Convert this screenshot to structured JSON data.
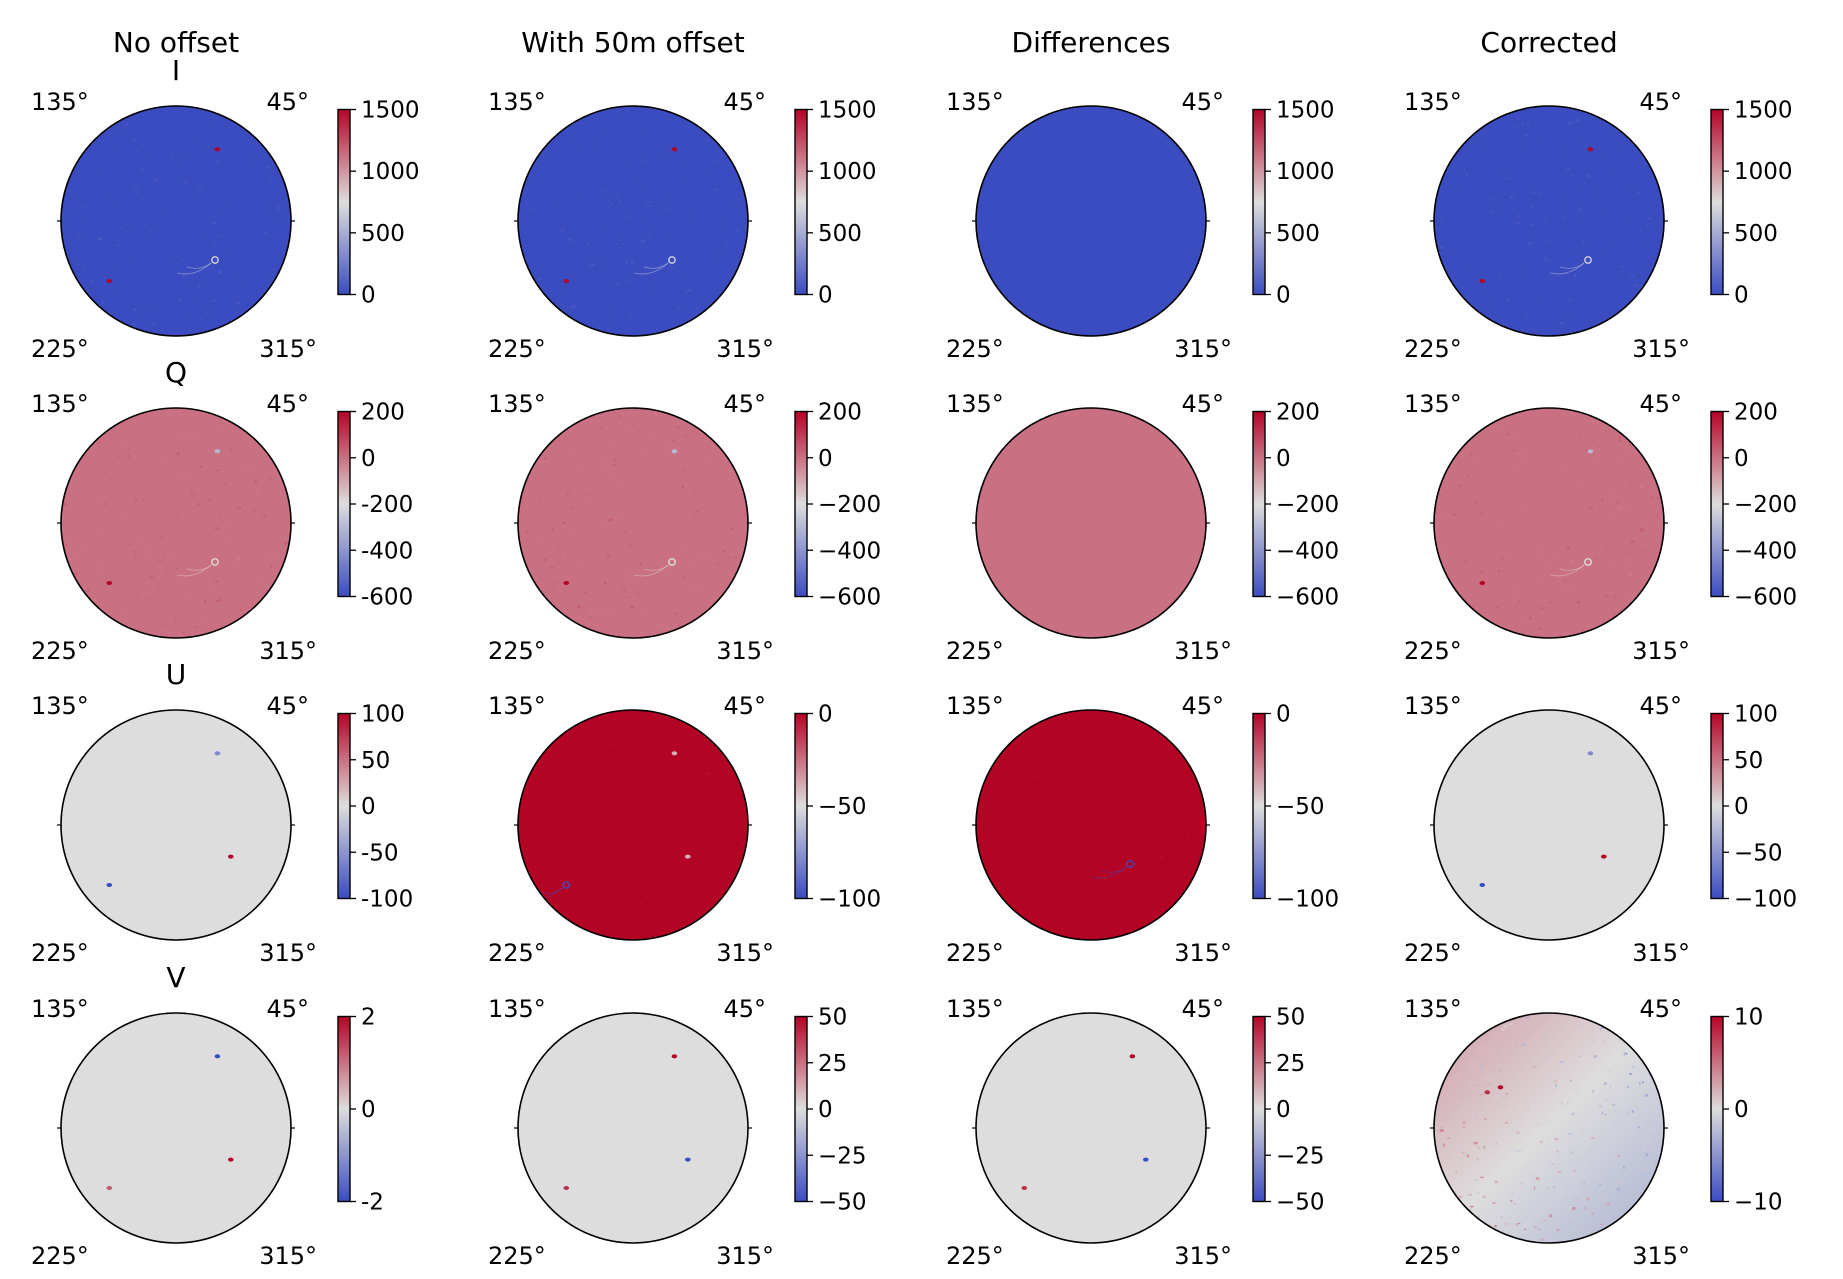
{
  "column_titles": [
    "No offset",
    "With 50m offset",
    "Differences",
    "Corrected"
  ],
  "row_labels": [
    "I",
    "Q",
    "U",
    "V"
  ],
  "corner_labels": {
    "top_left": "135°",
    "top_right": "45°",
    "bottom_left": "225°",
    "bottom_right": "315°"
  },
  "colors": {
    "cmap": "coolwarm",
    "cmap_low": "#3b4cc0",
    "cmap_mid": "#dddddd",
    "cmap_high": "#b40426",
    "outline": "#000000",
    "background": "#ffffff"
  },
  "chart_data": {
    "type": "heatmap",
    "layout": "4 rows x 4 columns of circular all-sky maps, each with its own colorbar",
    "panels": [
      {
        "row": "I",
        "column": "No offset",
        "background": 0,
        "clim": [
          0,
          1500
        ],
        "ticks": [
          0,
          500,
          1000,
          1500
        ],
        "tick_labels": [
          "0",
          "500",
          "1000",
          "1500"
        ],
        "texture": "speckle",
        "sources": [
          {
            "az_deg": 60,
            "r": 0.72,
            "value": 1500
          },
          {
            "az_deg": 315,
            "r": 0.48,
            "value": 700,
            "ring": true
          },
          {
            "az_deg": 222,
            "r": 0.78,
            "value": 1500
          }
        ]
      },
      {
        "row": "I",
        "column": "With 50m offset",
        "background": 0,
        "clim": [
          0,
          1500
        ],
        "ticks": [
          0,
          500,
          1000,
          1500
        ],
        "tick_labels": [
          "0",
          "500",
          "1000",
          "1500"
        ],
        "texture": "speckle",
        "sources": [
          {
            "az_deg": 60,
            "r": 0.72,
            "value": 1500
          },
          {
            "az_deg": 315,
            "r": 0.48,
            "value": 700,
            "ring": true
          },
          {
            "az_deg": 222,
            "r": 0.78,
            "value": 1500
          }
        ]
      },
      {
        "row": "I",
        "column": "Differences",
        "background": 0,
        "clim": [
          0,
          1500
        ],
        "ticks": [
          0,
          500,
          1000,
          1500
        ],
        "tick_labels": [
          "0",
          "500",
          "1000",
          "1500"
        ],
        "texture": "none",
        "sources": []
      },
      {
        "row": "I",
        "column": "Corrected",
        "background": 0,
        "clim": [
          0,
          1500
        ],
        "ticks": [
          0,
          500,
          1000,
          1500
        ],
        "tick_labels": [
          "0",
          "500",
          "1000",
          "1500"
        ],
        "texture": "speckle",
        "sources": [
          {
            "az_deg": 60,
            "r": 0.72,
            "value": 1500
          },
          {
            "az_deg": 315,
            "r": 0.48,
            "value": 700,
            "ring": true
          },
          {
            "az_deg": 222,
            "r": 0.78,
            "value": 1500
          }
        ]
      },
      {
        "row": "Q",
        "column": "No offset",
        "background": 0,
        "clim": [
          -600,
          200
        ],
        "ticks": [
          -600,
          -400,
          -200,
          0,
          200
        ],
        "tick_labels": [
          "-600",
          "-400",
          "-200",
          "0",
          "200"
        ],
        "texture": "speckle",
        "sources": [
          {
            "az_deg": 60,
            "r": 0.72,
            "value": -300
          },
          {
            "az_deg": 315,
            "r": 0.48,
            "value": -200,
            "ring": true
          },
          {
            "az_deg": 222,
            "r": 0.78,
            "value": 200
          }
        ]
      },
      {
        "row": "Q",
        "column": "With 50m offset",
        "background": 0,
        "clim": [
          -600,
          200
        ],
        "ticks": [
          -600,
          -400,
          -200,
          0,
          200
        ],
        "tick_labels": [
          "−600",
          "−400",
          "−200",
          "0",
          "200"
        ],
        "texture": "speckle",
        "sources": [
          {
            "az_deg": 60,
            "r": 0.72,
            "value": -300
          },
          {
            "az_deg": 315,
            "r": 0.48,
            "value": -200,
            "ring": true
          },
          {
            "az_deg": 222,
            "r": 0.78,
            "value": 200
          }
        ]
      },
      {
        "row": "Q",
        "column": "Differences",
        "background": 0,
        "clim": [
          -600,
          200
        ],
        "ticks": [
          -600,
          -400,
          -200,
          0,
          200
        ],
        "tick_labels": [
          "−600",
          "−400",
          "−200",
          "0",
          "200"
        ],
        "texture": "none",
        "sources": []
      },
      {
        "row": "Q",
        "column": "Corrected",
        "background": 0,
        "clim": [
          -600,
          200
        ],
        "ticks": [
          -600,
          -400,
          -200,
          0,
          200
        ],
        "tick_labels": [
          "−600",
          "−400",
          "−200",
          "0",
          "200"
        ],
        "texture": "speckle",
        "sources": [
          {
            "az_deg": 60,
            "r": 0.72,
            "value": -300
          },
          {
            "az_deg": 315,
            "r": 0.48,
            "value": -200,
            "ring": true
          },
          {
            "az_deg": 222,
            "r": 0.78,
            "value": 200
          }
        ]
      },
      {
        "row": "U",
        "column": "No offset",
        "background": 0,
        "clim": [
          -100,
          100
        ],
        "ticks": [
          -100,
          -50,
          0,
          50,
          100
        ],
        "tick_labels": [
          "-100",
          "-50",
          "0",
          "50",
          "100"
        ],
        "texture": "none",
        "sources": [
          {
            "az_deg": 60,
            "r": 0.72,
            "value": -60
          },
          {
            "az_deg": 330,
            "r": 0.55,
            "value": 100
          },
          {
            "az_deg": 222,
            "r": 0.78,
            "value": -100
          }
        ]
      },
      {
        "row": "U",
        "column": "With 50m offset",
        "background": 0,
        "clim": [
          -100,
          0
        ],
        "ticks": [
          -100,
          -50,
          0
        ],
        "tick_labels": [
          "−100",
          "−50",
          "0"
        ],
        "texture": "speckle",
        "sources": [
          {
            "az_deg": 60,
            "r": 0.72,
            "value": -40
          },
          {
            "az_deg": 330,
            "r": 0.55,
            "value": -40
          },
          {
            "az_deg": 222,
            "r": 0.78,
            "value": -100,
            "ring": true
          }
        ]
      },
      {
        "row": "U",
        "column": "Differences",
        "background": 0,
        "clim": [
          -100,
          0
        ],
        "ticks": [
          -100,
          -50,
          0
        ],
        "tick_labels": [
          "−100",
          "−50",
          "0"
        ],
        "texture": "speckle",
        "sources": [
          {
            "az_deg": 315,
            "r": 0.48,
            "value": -100,
            "ring": true
          }
        ]
      },
      {
        "row": "U",
        "column": "Corrected",
        "background": 0,
        "clim": [
          -100,
          100
        ],
        "ticks": [
          -100,
          -50,
          0,
          50,
          100
        ],
        "tick_labels": [
          "−100",
          "−50",
          "0",
          "50",
          "100"
        ],
        "texture": "none",
        "sources": [
          {
            "az_deg": 60,
            "r": 0.72,
            "value": -60
          },
          {
            "az_deg": 330,
            "r": 0.55,
            "value": 100
          },
          {
            "az_deg": 222,
            "r": 0.78,
            "value": -100
          }
        ]
      },
      {
        "row": "V",
        "column": "No offset",
        "background": 0,
        "clim": [
          -2,
          2
        ],
        "ticks": [
          -2,
          0,
          2
        ],
        "tick_labels": [
          "-2",
          "0",
          "2"
        ],
        "texture": "none",
        "sources": [
          {
            "az_deg": 60,
            "r": 0.72,
            "value": -2
          },
          {
            "az_deg": 330,
            "r": 0.55,
            "value": 2
          },
          {
            "az_deg": 222,
            "r": 0.78,
            "value": 1.2
          }
        ]
      },
      {
        "row": "V",
        "column": "With 50m offset",
        "background": 0,
        "clim": [
          -50,
          50
        ],
        "ticks": [
          -50,
          -25,
          0,
          25,
          50
        ],
        "tick_labels": [
          "−50",
          "−25",
          "0",
          "25",
          "50"
        ],
        "texture": "none",
        "sources": [
          {
            "az_deg": 60,
            "r": 0.72,
            "value": 50
          },
          {
            "az_deg": 330,
            "r": 0.55,
            "value": -50
          },
          {
            "az_deg": 222,
            "r": 0.78,
            "value": 40
          }
        ]
      },
      {
        "row": "V",
        "column": "Differences",
        "background": 0,
        "clim": [
          -50,
          50
        ],
        "ticks": [
          -50,
          -25,
          0,
          25,
          50
        ],
        "tick_labels": [
          "−50",
          "−25",
          "0",
          "25",
          "50"
        ],
        "texture": "none",
        "sources": [
          {
            "az_deg": 60,
            "r": 0.72,
            "value": 50
          },
          {
            "az_deg": 330,
            "r": 0.55,
            "value": -50
          },
          {
            "az_deg": 222,
            "r": 0.78,
            "value": 40
          }
        ]
      },
      {
        "row": "V",
        "column": "Corrected",
        "background": 0,
        "clim": [
          -10,
          10
        ],
        "ticks": [
          -10,
          0,
          10
        ],
        "tick_labels": [
          "−10",
          "0",
          "10"
        ],
        "texture": "gradient",
        "gradient": {
          "upper_left": 3,
          "lower_right": -3
        },
        "sources": [
          {
            "az_deg": 140,
            "r": 0.55,
            "value": 10
          },
          {
            "az_deg": 150,
            "r": 0.62,
            "value": 8
          }
        ]
      }
    ]
  }
}
